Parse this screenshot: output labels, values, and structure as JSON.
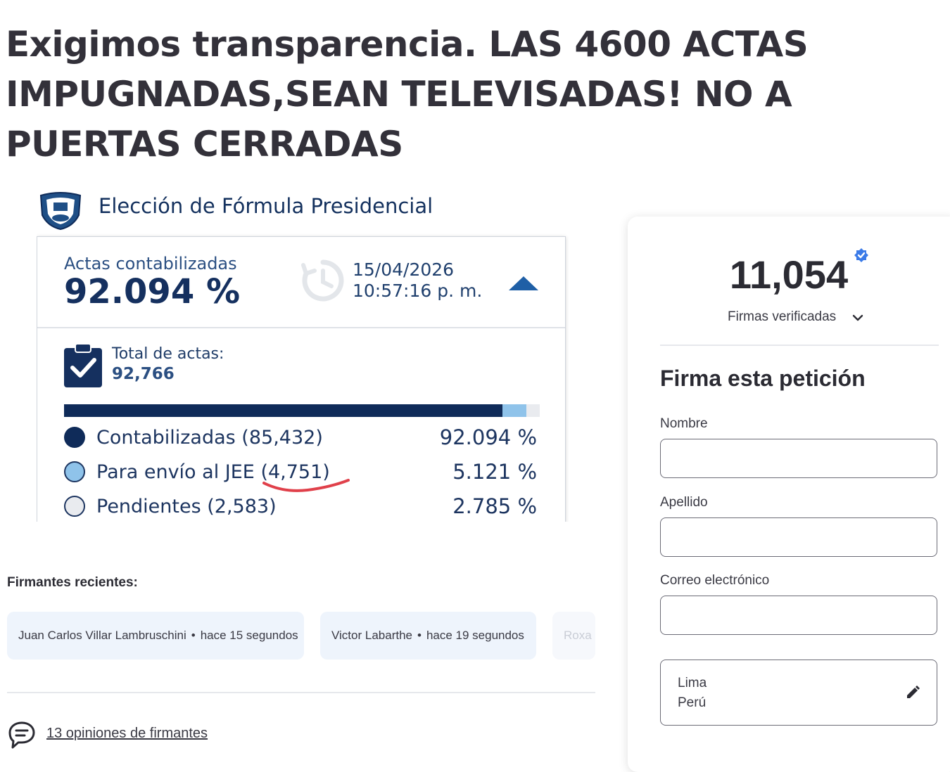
{
  "petition": {
    "title": "Exigimos transparencia. LAS 4600 ACTAS IMPUGNADAS,SEAN TELEVISADAS! NO A PUERTAS CERRADAS"
  },
  "election_image": {
    "title": "Elección de Fórmula Presidencial",
    "actas_label": "Actas contabilizadas",
    "actas_value": "92.094 %",
    "date": "15/04/2026",
    "time": "10:57:16 p. m.",
    "total_label": "Total de actas:",
    "total_value": "92,766",
    "progress": {
      "counted_pct": 92.094,
      "jee_pct": 5.121,
      "pending_pct": 2.785
    },
    "legend": [
      {
        "label": "Contabilizadas (85,432)",
        "pct": "92.094 %",
        "color": "#0f2b59"
      },
      {
        "label": "Para envío al JEE (4,751)",
        "pct": "5.121 %",
        "color": "#8fc3ea"
      },
      {
        "label": "Pendientes (2,583)",
        "pct": "2.785 %",
        "color": "#e9ebef"
      }
    ],
    "annotation_color": "#e0404a"
  },
  "recent_signers": {
    "heading": "Firmantes recientes:",
    "items": [
      {
        "name": "Juan Carlos Villar Lambruschini",
        "time": "hace 15 segundos"
      },
      {
        "name": "Victor Labarthe",
        "time": "hace 19 segundos"
      },
      {
        "name": "Roxa",
        "time": ""
      }
    ],
    "separator": "•"
  },
  "comments": {
    "link_text": "13 opiniones de firmantes"
  },
  "sign_panel": {
    "count": "11,054",
    "count_label": "Firmas verificadas",
    "form_title": "Firma esta petición",
    "fields": [
      {
        "label": "Nombre",
        "value": ""
      },
      {
        "label": "Apellido",
        "value": ""
      },
      {
        "label": "Correo electrónico",
        "value": ""
      }
    ],
    "location": {
      "city": "Lima",
      "country": "Perú"
    },
    "verified_color": "#3b7be8"
  }
}
